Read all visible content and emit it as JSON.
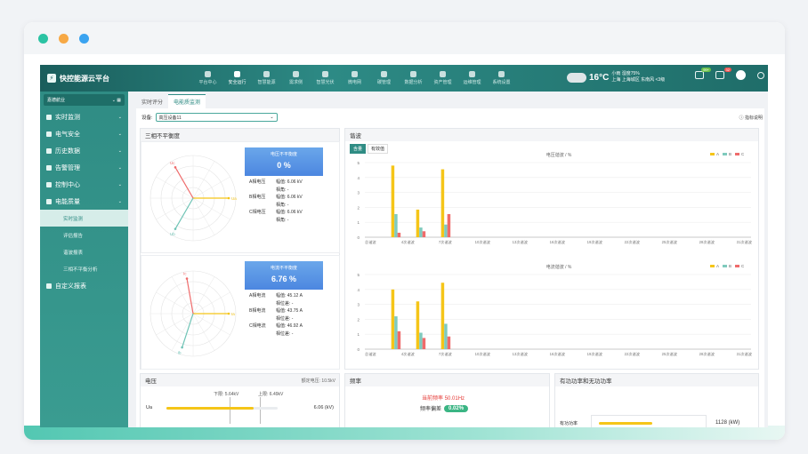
{
  "app": {
    "title": "快控能源云平台"
  },
  "menu": [
    {
      "label": "平台中心",
      "active": false
    },
    {
      "label": "安全运行",
      "active": true
    },
    {
      "label": "智慧能源",
      "active": false
    },
    {
      "label": "需求侧",
      "active": false
    },
    {
      "label": "智慧光伏",
      "active": false
    },
    {
      "label": "微电网",
      "active": false
    },
    {
      "label": "碳管理",
      "active": false
    },
    {
      "label": "数据分析",
      "active": false
    },
    {
      "label": "资产管理",
      "active": false
    },
    {
      "label": "运维管理",
      "active": false
    },
    {
      "label": "系统设置",
      "active": false
    }
  ],
  "weather": {
    "temp": "16°C",
    "desc": "小雨 湿度75%",
    "location": "上海 上海城区 东南风 <3级"
  },
  "notifications": {
    "messages": "99+",
    "alerts": "32"
  },
  "sidebar": {
    "org": "嘉德航业",
    "items": [
      {
        "label": "实时监测"
      },
      {
        "label": "电气安全"
      },
      {
        "label": "历史数据"
      },
      {
        "label": "告警管理"
      },
      {
        "label": "控制中心"
      },
      {
        "label": "电能质量"
      }
    ],
    "subitems": [
      {
        "label": "实时监测",
        "active": true
      },
      {
        "label": "评估报告",
        "active": false
      },
      {
        "label": "谐波报表",
        "active": false
      },
      {
        "label": "三相不平衡分析",
        "active": false
      }
    ],
    "custom": "自定义报表"
  },
  "tabs": [
    {
      "label": "实时评分",
      "active": false
    },
    {
      "label": "电能质监测",
      "active": true
    }
  ],
  "device": {
    "label": "设备:",
    "value": "高压设备11"
  },
  "help": "指标说明",
  "unbalance": {
    "title": "三相不平衡度",
    "voltage": {
      "head": "电压不平衡度",
      "value": "0 %",
      "rows": [
        {
          "label": "A相电压",
          "amp": "幅值: 6.06 kV",
          "ang": "相角: -"
        },
        {
          "label": "B相电压",
          "amp": "幅值: 6.06 kV",
          "ang": "相角: -"
        },
        {
          "label": "C相电压",
          "amp": "幅值: 6.06 kV",
          "ang": "相角: -"
        }
      ],
      "phasors": [
        {
          "name": "Ua",
          "color": "#f5c518",
          "angle": 0
        },
        {
          "name": "Ub",
          "color": "#6ec3b5",
          "angle": 240
        },
        {
          "name": "Uc",
          "color": "#ef6b6b",
          "angle": 120
        }
      ]
    },
    "current": {
      "head": "电流不平衡度",
      "value": "6.76 %",
      "rows": [
        {
          "label": "A相电流",
          "amp": "幅值: 45.12 A",
          "ang": "相位差: -"
        },
        {
          "label": "B相电流",
          "amp": "幅值: 43.75 A",
          "ang": "相位差: -"
        },
        {
          "label": "C相电流",
          "amp": "幅值: 46.92 A",
          "ang": "相位差: -"
        }
      ],
      "phasors": [
        {
          "name": "Ia",
          "color": "#f5c518",
          "angle": 0
        },
        {
          "name": "Ib",
          "color": "#6ec3b5",
          "angle": 252
        },
        {
          "name": "Ic",
          "color": "#ef6b6b",
          "angle": 100
        }
      ]
    }
  },
  "harmonic": {
    "title": "谐波",
    "switch": [
      "含量",
      "有效值"
    ]
  },
  "chart_data": [
    {
      "type": "bar",
      "title": "电压谐波 / %",
      "categories": [
        "总谐波",
        "2次谐波",
        "3次谐波",
        "4次谐波",
        "5次谐波",
        "6次谐波",
        "7次谐波",
        "8次谐波",
        "9次谐波",
        "10次谐波",
        "11次谐波",
        "12次谐波",
        "13次谐波",
        "14次谐波",
        "15次谐波",
        "16次谐波",
        "17次谐波",
        "18次谐波",
        "19次谐波",
        "20次谐波",
        "21次谐波",
        "22次谐波",
        "23次谐波",
        "24次谐波",
        "25次谐波",
        "26次谐波",
        "27次谐波",
        "28次谐波",
        "29次谐波",
        "30次谐波",
        "31次谐波"
      ],
      "xtick_labels": [
        "总谐波",
        "4次谐波",
        "7次谐波",
        "10次谐波",
        "13次谐波",
        "16次谐波",
        "19次谐波",
        "22次谐波",
        "25次谐波",
        "28次谐波",
        "31次谐波"
      ],
      "series": [
        {
          "name": "A",
          "color": "#f5c518",
          "values": [
            0,
            0,
            4.8,
            0,
            1.85,
            0,
            4.55,
            0,
            0,
            0,
            0,
            0,
            0,
            0,
            0,
            0,
            0,
            0,
            0,
            0,
            0,
            0,
            0,
            0,
            0,
            0,
            0,
            0,
            0,
            0,
            0
          ]
        },
        {
          "name": "B",
          "color": "#7fcabd",
          "values": [
            0,
            0,
            1.55,
            0,
            0.65,
            0,
            0.85,
            0,
            0,
            0,
            0,
            0,
            0,
            0,
            0,
            0,
            0,
            0,
            0,
            0,
            0,
            0,
            0,
            0,
            0,
            0,
            0,
            0,
            0,
            0,
            0
          ]
        },
        {
          "name": "C",
          "color": "#ef6b6b",
          "values": [
            0,
            0,
            0.3,
            0,
            0.4,
            0,
            1.55,
            0,
            0,
            0,
            0,
            0,
            0,
            0,
            0,
            0,
            0,
            0,
            0,
            0,
            0,
            0,
            0,
            0,
            0,
            0,
            0,
            0,
            0,
            0,
            0
          ]
        }
      ],
      "ylim": [
        0,
        5
      ],
      "yticks": [
        0,
        1,
        2,
        3,
        4,
        5
      ]
    },
    {
      "type": "bar",
      "title": "电流谐波 / %",
      "categories": [
        "总谐波",
        "2次谐波",
        "3次谐波",
        "4次谐波",
        "5次谐波",
        "6次谐波",
        "7次谐波",
        "8次谐波",
        "9次谐波",
        "10次谐波",
        "11次谐波",
        "12次谐波",
        "13次谐波",
        "14次谐波",
        "15次谐波",
        "16次谐波",
        "17次谐波",
        "18次谐波",
        "19次谐波",
        "20次谐波",
        "21次谐波",
        "22次谐波",
        "23次谐波",
        "24次谐波",
        "25次谐波",
        "26次谐波",
        "27次谐波",
        "28次谐波",
        "29次谐波",
        "30次谐波",
        "31次谐波"
      ],
      "xtick_labels": [
        "总谐波",
        "4次谐波",
        "7次谐波",
        "10次谐波",
        "13次谐波",
        "16次谐波",
        "19次谐波",
        "22次谐波",
        "25次谐波",
        "28次谐波",
        "31次谐波"
      ],
      "series": [
        {
          "name": "A",
          "color": "#f5c518",
          "values": [
            0,
            0,
            4.0,
            0,
            3.2,
            0,
            4.45,
            0,
            0,
            0,
            0,
            0,
            0,
            0,
            0,
            0,
            0,
            0,
            0,
            0,
            0,
            0,
            0,
            0,
            0,
            0,
            0,
            0,
            0,
            0,
            0
          ]
        },
        {
          "name": "B",
          "color": "#7fcabd",
          "values": [
            0,
            0,
            2.2,
            0,
            1.1,
            0,
            1.7,
            0,
            0,
            0,
            0,
            0,
            0,
            0,
            0,
            0,
            0,
            0,
            0,
            0,
            0,
            0,
            0,
            0,
            0,
            0,
            0,
            0,
            0,
            0,
            0
          ]
        },
        {
          "name": "C",
          "color": "#ef6b6b",
          "values": [
            0,
            0,
            1.2,
            0,
            0.75,
            0,
            0.85,
            0,
            0,
            0,
            0,
            0,
            0,
            0,
            0,
            0,
            0,
            0,
            0,
            0,
            0,
            0,
            0,
            0,
            0,
            0,
            0,
            0,
            0,
            0,
            0
          ]
        }
      ],
      "ylim": [
        0,
        5
      ],
      "yticks": [
        0,
        1,
        2,
        3,
        4,
        5
      ]
    }
  ],
  "voltage_panel": {
    "title": "电压",
    "rated": "额定电压: 10.5kV",
    "lower": "下限: 5.64kV",
    "upper": "上限: 6.49kV",
    "phase": "Ua",
    "value": "6.06 (kV)",
    "fill": 0.78
  },
  "freq_panel": {
    "title": "频率",
    "current_label": "当前频率",
    "current": "50.01Hz",
    "dev_label": "频率偏差",
    "dev": "0.02%"
  },
  "power_panel": {
    "title": "有功功率和无功功率",
    "label": "有功功率",
    "value": "1128 (kW)"
  }
}
